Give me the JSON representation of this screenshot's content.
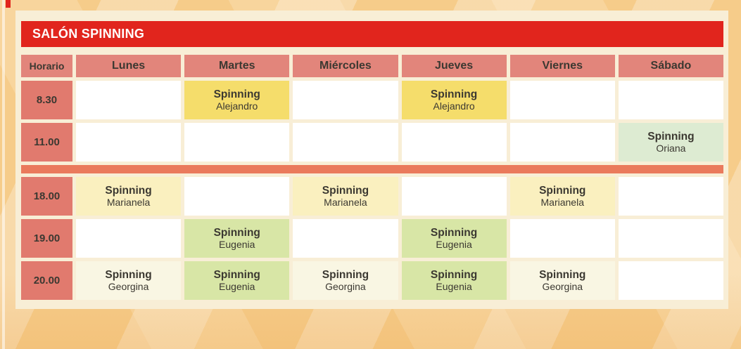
{
  "title": "SALÓN SPINNING",
  "colors": {
    "banner_red": "#E1251D",
    "day_header_salmon": "#E2857B",
    "time_salmon": "#E17A6E",
    "divider_coral": "#EA7A5C",
    "panel_cream": "#F8EED6",
    "empty_white": "#FFFFFF",
    "text_dark": "#3B3831",
    "yellow": "#F5DD6B",
    "mint": "#DDEBD2",
    "green": "#D8E6A6",
    "cream": "#FAF0BF",
    "palecream": "#F9F6E3"
  },
  "table": {
    "time_header": "Horario",
    "days": [
      "Lunes",
      "Martes",
      "Miércoles",
      "Jueves",
      "Viernes",
      "Sábado"
    ],
    "rows": [
      {
        "time": "8.30",
        "cells": [
          {},
          {
            "activity": "Spinning",
            "instructor": "Alejandro",
            "style": "yellow"
          },
          {},
          {
            "activity": "Spinning",
            "instructor": "Alejandro",
            "style": "yellow"
          },
          {},
          {}
        ]
      },
      {
        "time": "11.00",
        "cells": [
          {},
          {},
          {},
          {},
          {},
          {
            "activity": "Spinning",
            "instructor": "Oriana",
            "style": "mint"
          }
        ]
      },
      {
        "divider": true
      },
      {
        "time": "18.00",
        "cells": [
          {
            "activity": "Spinning",
            "instructor": "Marianela",
            "style": "cream"
          },
          {},
          {
            "activity": "Spinning",
            "instructor": "Marianela",
            "style": "cream"
          },
          {},
          {
            "activity": "Spinning",
            "instructor": "Marianela",
            "style": "cream"
          },
          {}
        ]
      },
      {
        "time": "19.00",
        "cells": [
          {},
          {
            "activity": "Spinning",
            "instructor": "Eugenia",
            "style": "green"
          },
          {},
          {
            "activity": "Spinning",
            "instructor": "Eugenia",
            "style": "green"
          },
          {},
          {}
        ]
      },
      {
        "time": "20.00",
        "cells": [
          {
            "activity": "Spinning",
            "instructor": "Georgina",
            "style": "palecream"
          },
          {
            "activity": "Spinning",
            "instructor": "Eugenia",
            "style": "green"
          },
          {
            "activity": "Spinning",
            "instructor": "Georgina",
            "style": "palecream"
          },
          {
            "activity": "Spinning",
            "instructor": "Eugenia",
            "style": "green"
          },
          {
            "activity": "Spinning",
            "instructor": "Georgina",
            "style": "palecream"
          },
          {}
        ]
      }
    ]
  }
}
